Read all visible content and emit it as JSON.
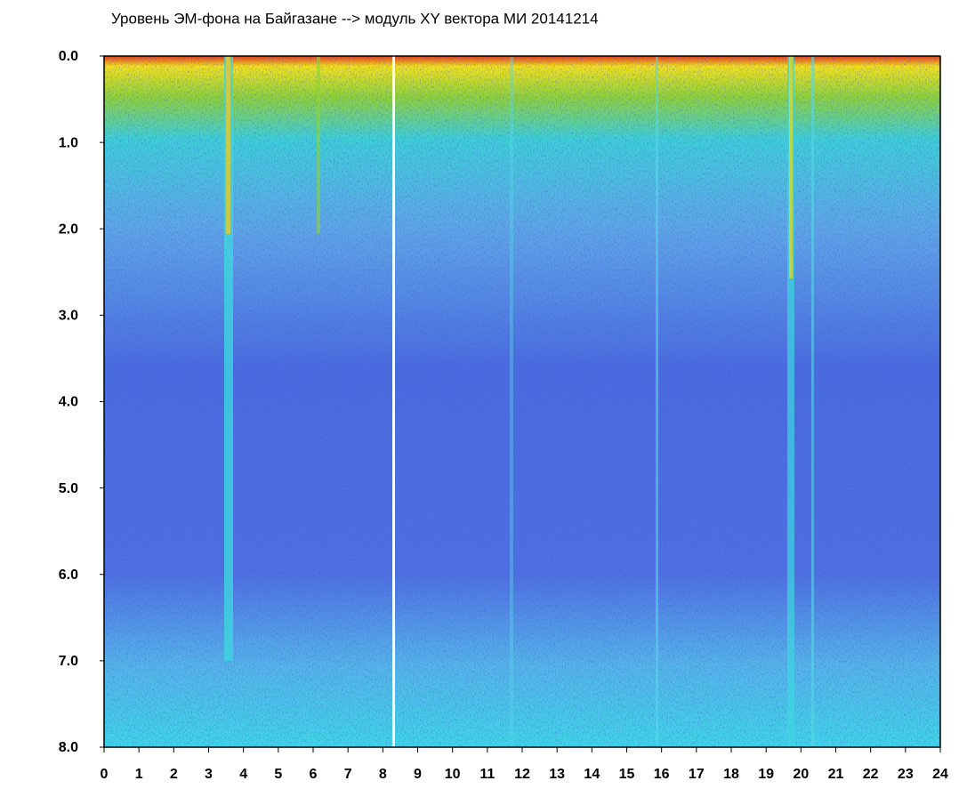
{
  "chart_data": {
    "type": "heatmap",
    "title": "Уровень ЭМ-фона на Байгазане  -->  модуль XY вектора МИ  20141214",
    "xlim": [
      0,
      24
    ],
    "xticks": [
      0,
      1,
      2,
      3,
      4,
      5,
      6,
      7,
      8,
      9,
      10,
      11,
      12,
      13,
      14,
      15,
      16,
      17,
      18,
      19,
      20,
      21,
      22,
      23,
      24
    ],
    "ylim": [
      0,
      8
    ],
    "y_inverted": true,
    "yticks": [
      {
        "value": 0,
        "label": "0.0"
      },
      {
        "value": 1,
        "label": "1.0"
      },
      {
        "value": 2,
        "label": "2.0"
      },
      {
        "value": 3,
        "label": "3.0"
      },
      {
        "value": 4,
        "label": "4.0"
      },
      {
        "value": 5,
        "label": "5.0"
      },
      {
        "value": 6,
        "label": "6.0"
      },
      {
        "value": 7,
        "label": "7.0"
      },
      {
        "value": 8,
        "label": "8.0"
      }
    ],
    "grid": false
  }
}
